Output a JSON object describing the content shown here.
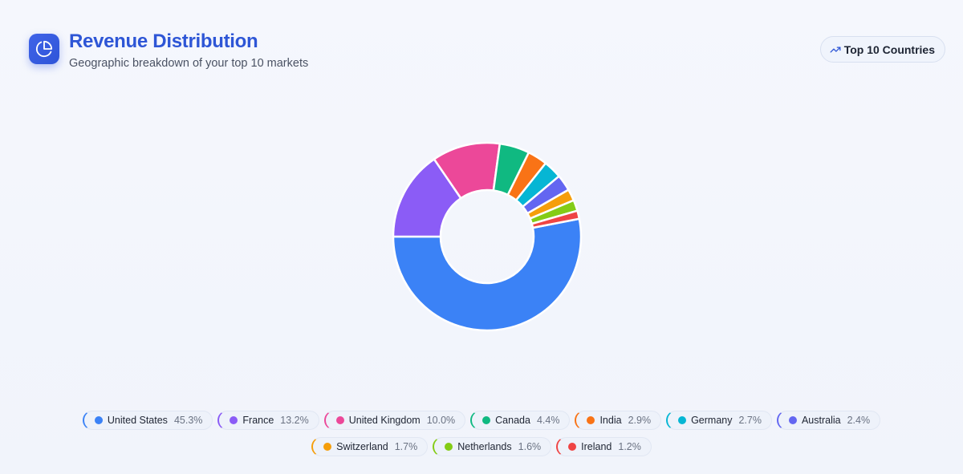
{
  "header": {
    "title": "Revenue Distribution",
    "subtitle": "Geographic breakdown of your top 10 markets",
    "logo_icon": "pie-chart-icon"
  },
  "toolbar": {
    "top_button_label": "Top 10 Countries",
    "top_button_icon": "trending-up-icon"
  },
  "chart_data": {
    "type": "pie",
    "donut": true,
    "categories": [
      "United States",
      "France",
      "United Kingdom",
      "Canada",
      "India",
      "Germany",
      "Australia",
      "Switzerland",
      "Netherlands",
      "Ireland"
    ],
    "values": [
      45.3,
      13.2,
      10.0,
      4.4,
      2.9,
      2.7,
      2.4,
      1.7,
      1.6,
      1.2
    ],
    "labels": [
      "45.3%",
      "13.2%",
      "10.0%",
      "4.4%",
      "2.9%",
      "2.7%",
      "2.4%",
      "1.7%",
      "1.6%",
      "1.2%"
    ],
    "colors": [
      "#3b82f6",
      "#8b5cf6",
      "#ec4899",
      "#10b981",
      "#f97316",
      "#06b6d4",
      "#6366f1",
      "#f59e0b",
      "#84cc16",
      "#ef4444"
    ],
    "legend_position": "bottom"
  }
}
